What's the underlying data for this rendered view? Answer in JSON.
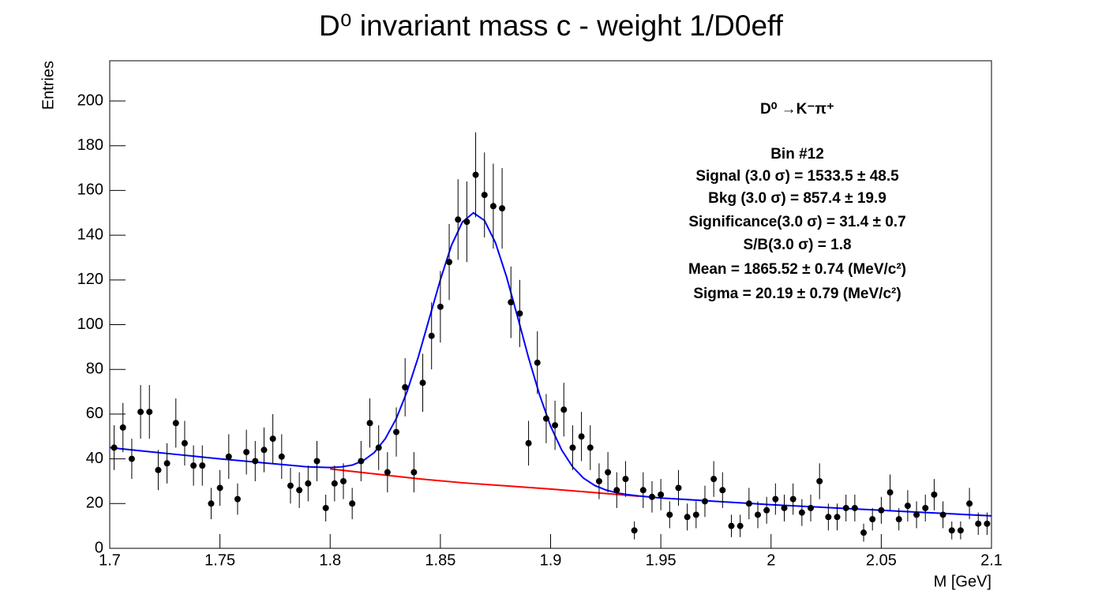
{
  "chart_data": {
    "type": "errorbar",
    "title": "D⁰ invariant mass c - weight 1/D0eff",
    "x_label": "M [GeV]",
    "y_label": "Entries",
    "annotations": [
      "D⁰ →K⁻π⁺",
      "Bin #12",
      "Signal (3.0 σ) =  1533.5 ± 48.5",
      "Bkg (3.0 σ) =  857.4 ± 19.9",
      "Significance(3.0 σ) =  31.4 ± 0.7",
      "S/B(3.0 σ) =  1.8",
      "Mean = 1865.52 ± 0.74 (MeV/c²)",
      "Sigma = 20.19 ± 0.79 (MeV/c²)"
    ],
    "xlim": [
      1.7,
      2.1
    ],
    "xticks": [
      1.7,
      1.75,
      1.8,
      1.85,
      1.9,
      1.95,
      2,
      2.05,
      2.1
    ],
    "ylim": [
      0,
      218
    ],
    "yticks": [
      0,
      20,
      40,
      60,
      80,
      100,
      120,
      140,
      160,
      180,
      200
    ],
    "color": "#000000",
    "x": [
      1.702,
      1.706,
      1.71,
      1.714,
      1.718,
      1.722,
      1.726,
      1.73,
      1.734,
      1.738,
      1.742,
      1.746,
      1.75,
      1.754,
      1.758,
      1.762,
      1.766,
      1.77,
      1.774,
      1.778,
      1.782,
      1.786,
      1.79,
      1.794,
      1.798,
      1.802,
      1.806,
      1.81,
      1.814,
      1.818,
      1.822,
      1.826,
      1.83,
      1.834,
      1.838,
      1.842,
      1.846,
      1.85,
      1.854,
      1.858,
      1.862,
      1.866,
      1.87,
      1.874,
      1.878,
      1.882,
      1.886,
      1.89,
      1.894,
      1.898,
      1.902,
      1.906,
      1.91,
      1.914,
      1.918,
      1.922,
      1.926,
      1.93,
      1.934,
      1.938,
      1.942,
      1.946,
      1.95,
      1.954,
      1.958,
      1.962,
      1.966,
      1.97,
      1.974,
      1.978,
      1.982,
      1.986,
      1.99,
      1.994,
      1.998,
      2.002,
      2.006,
      2.01,
      2.014,
      2.018,
      2.022,
      2.026,
      2.03,
      2.034,
      2.038,
      2.042,
      2.046,
      2.05,
      2.054,
      2.058,
      2.062,
      2.066,
      2.07,
      2.074,
      2.078,
      2.082,
      2.086,
      2.09,
      2.094,
      2.098
    ],
    "values": [
      45,
      54,
      40,
      61,
      61,
      35,
      38,
      56,
      47,
      37,
      37,
      20,
      27,
      41,
      22,
      43,
      39,
      44,
      49,
      41,
      28,
      26,
      29,
      39,
      18,
      29,
      30,
      20,
      39,
      56,
      45,
      34,
      52,
      72,
      34,
      74,
      95,
      108,
      128,
      147,
      146,
      167,
      158,
      153,
      152,
      110,
      105,
      47,
      83,
      58,
      55,
      62,
      45,
      50,
      45,
      30,
      34,
      26,
      31,
      8,
      26,
      23,
      24,
      15,
      27,
      14,
      15,
      21,
      31,
      26,
      10,
      10,
      20,
      15,
      17,
      22,
      18,
      22,
      16,
      18,
      30,
      14,
      14,
      18,
      18,
      7,
      13,
      17,
      25,
      13,
      19,
      15,
      18,
      24,
      15,
      8,
      8,
      20,
      11,
      11
    ],
    "errors": [
      10,
      11,
      9,
      12,
      12,
      9,
      9,
      11,
      10,
      9,
      9,
      7,
      8,
      10,
      7,
      10,
      9,
      10,
      11,
      10,
      8,
      8,
      8,
      9,
      6,
      8,
      8,
      7,
      9,
      11,
      10,
      9,
      11,
      13,
      9,
      13,
      15,
      16,
      17,
      18,
      18,
      19,
      19,
      19,
      18,
      16,
      15,
      10,
      14,
      11,
      11,
      12,
      10,
      11,
      10,
      8,
      9,
      8,
      8,
      4,
      8,
      7,
      7,
      6,
      8,
      6,
      6,
      7,
      8,
      8,
      5,
      5,
      7,
      6,
      6,
      7,
      6,
      7,
      6,
      6,
      8,
      6,
      6,
      6,
      6,
      4,
      5,
      6,
      8,
      5,
      7,
      6,
      6,
      7,
      6,
      4,
      4,
      7,
      5,
      5
    ],
    "fit": {
      "color": "#0000ff",
      "x": [
        1.7,
        1.71,
        1.72,
        1.73,
        1.74,
        1.75,
        1.76,
        1.77,
        1.78,
        1.79,
        1.8,
        1.805,
        1.81,
        1.815,
        1.82,
        1.825,
        1.83,
        1.835,
        1.84,
        1.845,
        1.85,
        1.855,
        1.86,
        1.865,
        1.87,
        1.875,
        1.88,
        1.885,
        1.89,
        1.895,
        1.9,
        1.905,
        1.91,
        1.915,
        1.92,
        1.925,
        1.93,
        1.935,
        1.94,
        1.95,
        1.96,
        1.97,
        1.98,
        1.99,
        2,
        2.01,
        2.02,
        2.03,
        2.04,
        2.05,
        2.06,
        2.07,
        2.08,
        2.09,
        2.1
      ],
      "values": [
        45,
        44,
        43,
        42,
        41,
        40,
        39.1,
        38.2,
        37.3,
        36.4,
        36.1,
        36.4,
        37.2,
        39.2,
        42.8,
        49,
        58,
        70.4,
        85.6,
        102.9,
        120.1,
        135.4,
        145.9,
        150,
        146.6,
        136.6,
        121.4,
        103.6,
        85.2,
        68.6,
        54.6,
        44,
        36.4,
        31.3,
        28.1,
        26.1,
        24.8,
        24,
        23.4,
        22.5,
        21.9,
        21.3,
        20.7,
        20.1,
        19.5,
        19,
        18.5,
        18,
        17.5,
        17,
        16.5,
        16,
        15.5,
        15,
        14.5
      ]
    },
    "background": {
      "color": "#ff0000",
      "x": [
        1.8,
        1.82,
        1.84,
        1.86,
        1.88,
        1.9,
        1.92,
        1.94
      ],
      "values": [
        35.5,
        33.3,
        31.1,
        29.3,
        27.9,
        26.5,
        24.9,
        23.3
      ]
    }
  }
}
